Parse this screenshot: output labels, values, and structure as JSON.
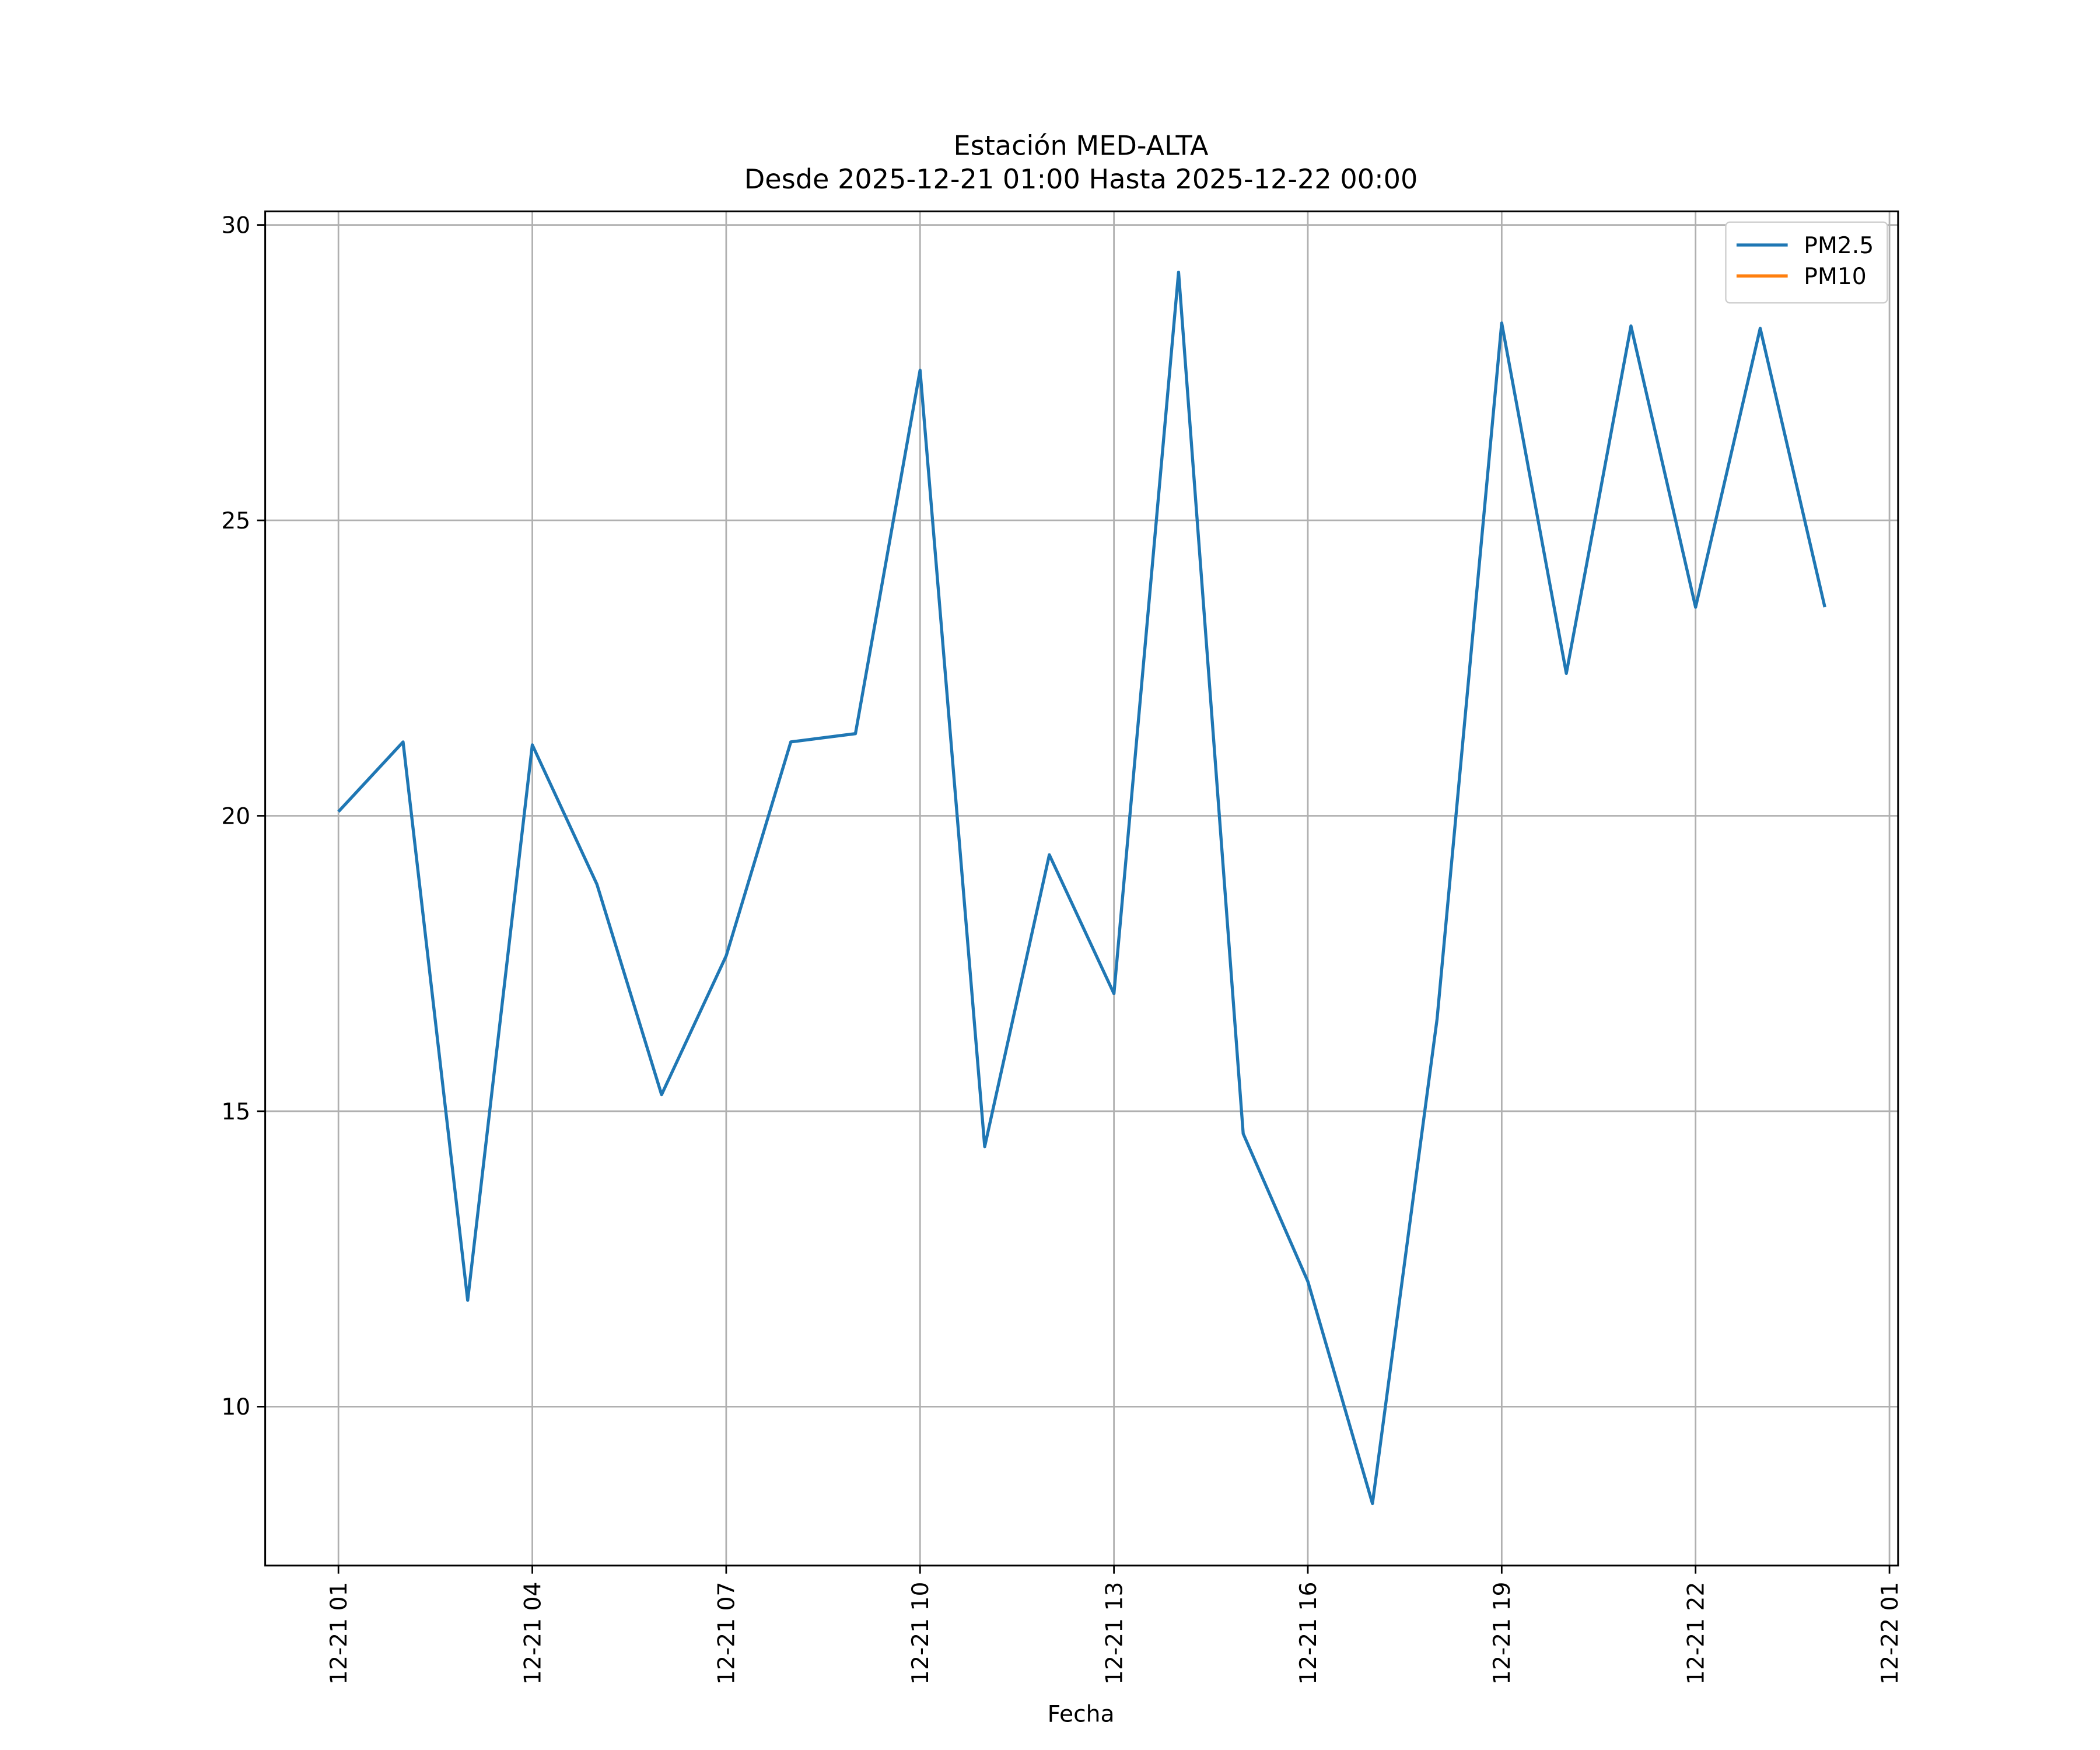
{
  "chart_data": {
    "type": "line",
    "title": "Estación MED-ALTA",
    "subtitle": "Desde 2025-12-21 01:00 Hasta 2025-12-22 00:00",
    "xlabel": "Fecha",
    "x": [
      "12-21 01",
      "12-21 02",
      "12-21 03",
      "12-21 04",
      "12-21 05",
      "12-21 06",
      "12-21 07",
      "12-21 08",
      "12-21 09",
      "12-21 10",
      "12-21 11",
      "12-21 12",
      "12-21 13",
      "12-21 14",
      "12-21 15",
      "12-21 16",
      "12-21 17",
      "12-21 18",
      "12-21 19",
      "12-21 20",
      "12-21 21",
      "12-21 22",
      "12-21 23",
      "12-22 00"
    ],
    "series": [
      {
        "name": "PM2.5",
        "color": "#1f77b4",
        "values": [
          20.07,
          21.25,
          11.8,
          21.2,
          18.84,
          15.28,
          17.63,
          21.25,
          21.39,
          27.54,
          14.4,
          19.34,
          16.99,
          29.2,
          14.62,
          12.12,
          8.36,
          16.56,
          28.34,
          22.41,
          28.29,
          23.53,
          28.25,
          23.53
        ]
      },
      {
        "name": "PM10",
        "color": "#ff7f0e",
        "values": [
          null,
          null,
          null,
          null,
          null,
          null,
          null,
          null,
          null,
          null,
          null,
          null,
          null,
          null,
          null,
          null,
          null,
          null,
          null,
          null,
          null,
          null,
          null,
          null
        ]
      }
    ],
    "xlim": [
      "12-20 23:52",
      "12-22 01:08"
    ],
    "xticks": [
      "12-21 01",
      "12-21 04",
      "12-21 07",
      "12-21 10",
      "12-21 13",
      "12-21 16",
      "12-21 19",
      "12-21 22",
      "12-22 01"
    ],
    "ylim": [
      7.31,
      30.23
    ],
    "yticks": [
      10,
      15,
      20,
      25,
      30
    ],
    "grid": true,
    "legend": "upper right"
  }
}
